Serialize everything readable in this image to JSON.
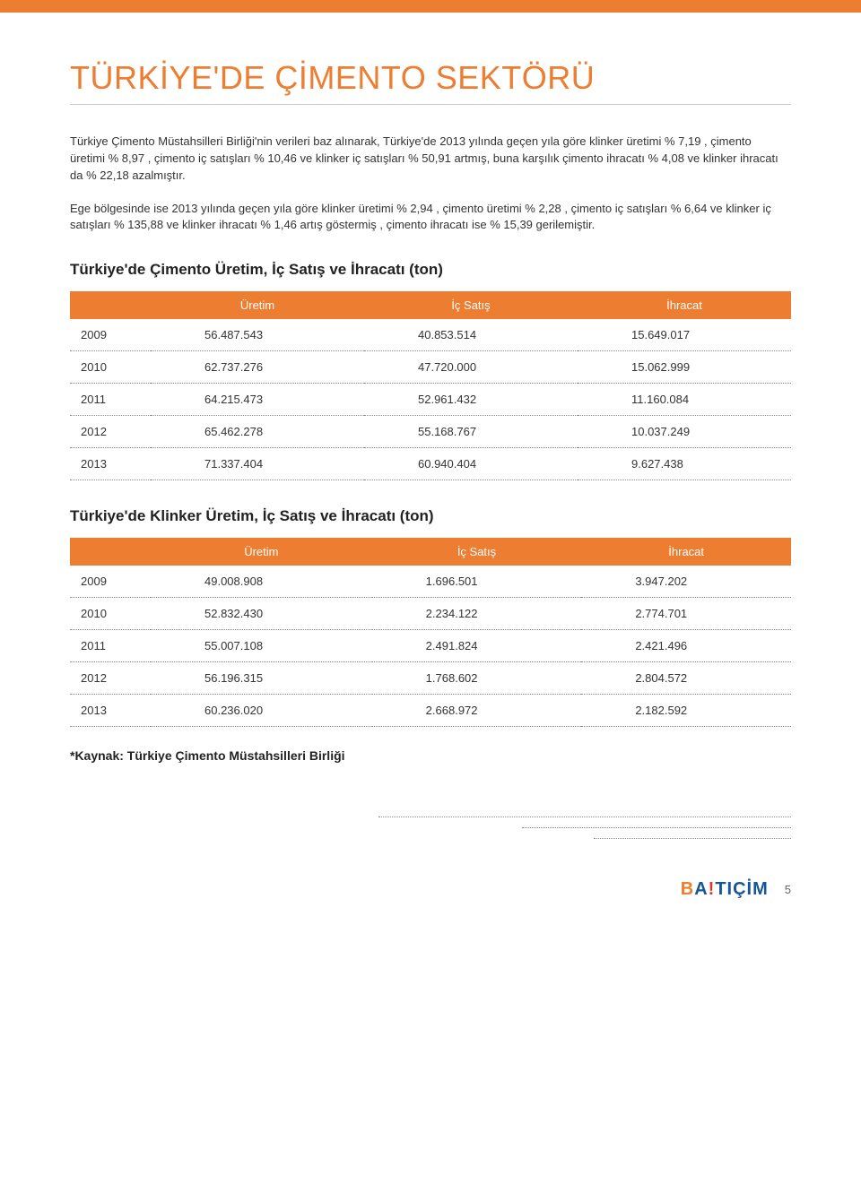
{
  "colors": {
    "accent": "#ed7d31",
    "text": "#222",
    "muted": "#888",
    "logo_blue": "#16559a",
    "logo_red": "#d33"
  },
  "title": "TÜRKİYE'DE ÇİMENTO SEKTÖRÜ",
  "paragraph1": "Türkiye Çimento Müstahsilleri Birliği'nin verileri baz alınarak, Türkiye'de 2013 yılında geçen yıla göre klinker üretimi % 7,19 , çimento üretimi % 8,97 , çimento iç satışları % 10,46 ve klinker iç satışları % 50,91 artmış, buna karşılık çimento ihracatı % 4,08 ve klinker ihracatı da % 22,18 azalmıştır.",
  "paragraph2": "Ege bölgesinde ise 2013 yılında geçen yıla göre klinker üretimi % 2,94 , çimento üretimi % 2,28 , çimento iç satışları % 6,64 ve klinker iç satışları % 135,88 ve klinker ihracatı % 1,46 artış göstermiş , çimento ihracatı ise % 15,39 gerilemiştir.",
  "table1": {
    "type": "table",
    "title": "Türkiye'de Çimento Üretim, İç Satış ve İhracatı (ton)",
    "columns": [
      "",
      "Üretim",
      "İç Satış",
      "İhracat"
    ],
    "rows": [
      [
        "2009",
        "56.487.543",
        "40.853.514",
        "15.649.017"
      ],
      [
        "2010",
        "62.737.276",
        "47.720.000",
        "15.062.999"
      ],
      [
        "2011",
        "64.215.473",
        "52.961.432",
        "11.160.084"
      ],
      [
        "2012",
        "65.462.278",
        "55.168.767",
        "10.037.249"
      ],
      [
        "2013",
        "71.337.404",
        "60.940.404",
        "9.627.438"
      ]
    ],
    "header_bg": "#ed7d31",
    "header_color": "#ffffff",
    "row_border": "1px dotted #888",
    "fontsize": 13
  },
  "table2": {
    "type": "table",
    "title": "Türkiye'de Klinker Üretim, İç Satış ve İhracatı (ton)",
    "columns": [
      "",
      "Üretim",
      "İç Satış",
      "İhracat"
    ],
    "rows": [
      [
        "2009",
        "49.008.908",
        "1.696.501",
        "3.947.202"
      ],
      [
        "2010",
        "52.832.430",
        "2.234.122",
        "2.774.701"
      ],
      [
        "2011",
        "55.007.108",
        "2.491.824",
        "2.421.496"
      ],
      [
        "2012",
        "56.196.315",
        "1.768.602",
        "2.804.572"
      ],
      [
        "2013",
        "60.236.020",
        "2.668.972",
        "2.182.592"
      ]
    ],
    "header_bg": "#ed7d31",
    "header_color": "#ffffff",
    "row_border": "1px dotted #888",
    "fontsize": 13
  },
  "source_note": "*Kaynak: Türkiye Çimento Müstahsilleri Birliği",
  "logo": {
    "b": "B",
    "a": "A",
    "bang": "!",
    "rest": "TIÇİM"
  },
  "page_number": "5"
}
